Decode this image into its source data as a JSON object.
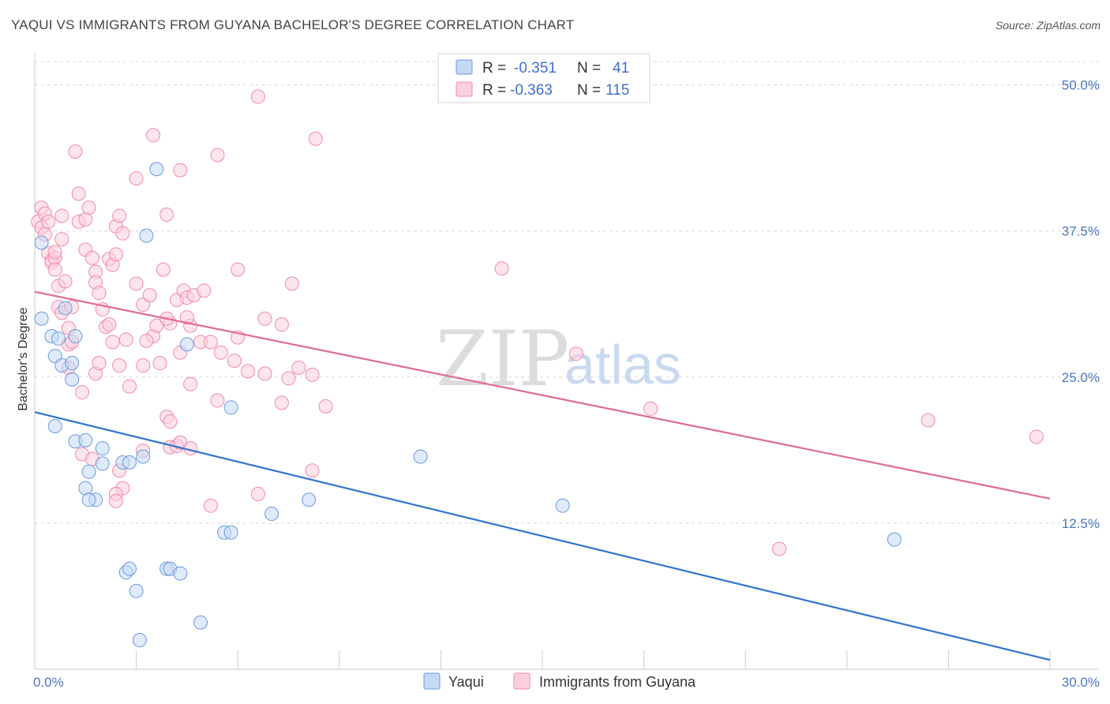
{
  "header": {
    "title": "YAQUI VS IMMIGRANTS FROM GUYANA BACHELOR'S DEGREE CORRELATION CHART",
    "source": "Source: ZipAtlas.com"
  },
  "watermark": {
    "zip": "ZIP",
    "atlas": "atlas"
  },
  "colors": {
    "yaqui": "#6a9be0",
    "yaqui_fill": "#c5d9f5",
    "yaqui_line": "#2f74d0",
    "guyana": "#f08aab",
    "guyana_fill": "#fbd0dd",
    "guyana_line": "#e06b95",
    "grid": "#d8d8d8",
    "tick_label": "#4a78c2"
  },
  "legend": {
    "rows": [
      {
        "r_label": "R =",
        "r_value": "-0.351",
        "n_label": "N =",
        "n_value": "41"
      },
      {
        "r_label": "R =",
        "r_value": "-0.363",
        "n_label": "N =",
        "n_value": "115"
      }
    ]
  },
  "bottom_legend": [
    "Yaqui",
    "Immigrants from Guyana"
  ],
  "chart_data": {
    "type": "scatter",
    "title": "YAQUI VS IMMIGRANTS FROM GUYANA BACHELOR'S DEGREE CORRELATION CHART",
    "xlabel": "",
    "ylabel": "Bachelor's Degree",
    "xlim": [
      0,
      30
    ],
    "ylim": [
      0,
      52
    ],
    "x_tick_labels": [
      "0.0%",
      "30.0%"
    ],
    "y_ticks": [
      12.5,
      25.0,
      37.5,
      50.0
    ],
    "y_tick_labels": [
      "12.5%",
      "25.0%",
      "37.5%",
      "50.0%"
    ],
    "grid": "horizontal dashed",
    "legend_position": "top-center",
    "series": [
      {
        "name": "Yaqui",
        "trend": {
          "x": [
            0,
            30
          ],
          "y": [
            22.0,
            0.8
          ]
        },
        "points": [
          [
            0.2,
            36.5
          ],
          [
            0.2,
            30.0
          ],
          [
            0.5,
            28.5
          ],
          [
            0.6,
            26.8
          ],
          [
            0.7,
            28.3
          ],
          [
            0.8,
            26.0
          ],
          [
            0.9,
            30.9
          ],
          [
            0.6,
            20.8
          ],
          [
            1.1,
            26.2
          ],
          [
            1.1,
            24.8
          ],
          [
            1.2,
            19.5
          ],
          [
            1.2,
            28.5
          ],
          [
            1.5,
            19.6
          ],
          [
            1.6,
            16.9
          ],
          [
            2.0,
            18.9
          ],
          [
            2.0,
            17.6
          ],
          [
            1.5,
            15.5
          ],
          [
            1.8,
            14.5
          ],
          [
            2.6,
            17.7
          ],
          [
            2.8,
            17.7
          ],
          [
            3.2,
            18.2
          ],
          [
            3.6,
            42.8
          ],
          [
            4.5,
            27.8
          ],
          [
            3.3,
            37.1
          ],
          [
            1.6,
            14.5
          ],
          [
            2.7,
            8.3
          ],
          [
            2.8,
            8.6
          ],
          [
            3.0,
            6.7
          ],
          [
            3.9,
            8.6
          ],
          [
            4.0,
            8.6
          ],
          [
            4.3,
            8.2
          ],
          [
            4.9,
            4.0
          ],
          [
            5.6,
            11.7
          ],
          [
            5.8,
            11.7
          ],
          [
            5.8,
            22.4
          ],
          [
            7.0,
            13.3
          ],
          [
            8.1,
            14.5
          ],
          [
            11.4,
            18.2
          ],
          [
            15.6,
            14.0
          ],
          [
            25.4,
            11.1
          ],
          [
            3.1,
            2.5
          ]
        ]
      },
      {
        "name": "Immigrants from Guyana",
        "trend": {
          "x": [
            0,
            30
          ],
          "y": [
            32.3,
            14.6
          ]
        },
        "points": [
          [
            0.1,
            38.3
          ],
          [
            0.2,
            39.5
          ],
          [
            0.2,
            37.8
          ],
          [
            0.3,
            39.0
          ],
          [
            0.3,
            37.2
          ],
          [
            0.4,
            35.6
          ],
          [
            0.5,
            35.0
          ],
          [
            0.5,
            34.8
          ],
          [
            0.6,
            35.2
          ],
          [
            0.6,
            34.2
          ],
          [
            0.7,
            32.8
          ],
          [
            0.8,
            38.8
          ],
          [
            0.8,
            36.8
          ],
          [
            0.7,
            31.0
          ],
          [
            0.8,
            30.5
          ],
          [
            1.0,
            29.2
          ],
          [
            1.0,
            27.8
          ],
          [
            1.1,
            31.0
          ],
          [
            1.2,
            44.3
          ],
          [
            1.3,
            40.7
          ],
          [
            1.3,
            38.3
          ],
          [
            1.5,
            38.5
          ],
          [
            1.6,
            39.5
          ],
          [
            1.5,
            35.9
          ],
          [
            1.7,
            35.2
          ],
          [
            1.8,
            34.0
          ],
          [
            1.8,
            33.1
          ],
          [
            1.9,
            32.2
          ],
          [
            2.0,
            30.8
          ],
          [
            2.1,
            29.3
          ],
          [
            2.2,
            35.1
          ],
          [
            2.3,
            34.6
          ],
          [
            2.4,
            35.5
          ],
          [
            2.4,
            37.9
          ],
          [
            2.5,
            38.8
          ],
          [
            2.6,
            37.3
          ],
          [
            2.2,
            29.5
          ],
          [
            2.3,
            28.0
          ],
          [
            2.5,
            26.0
          ],
          [
            1.8,
            25.3
          ],
          [
            1.4,
            23.7
          ],
          [
            1.0,
            25.8
          ],
          [
            3.0,
            33.0
          ],
          [
            3.2,
            31.2
          ],
          [
            3.4,
            32.0
          ],
          [
            3.5,
            28.5
          ],
          [
            3.6,
            29.4
          ],
          [
            3.2,
            26.0
          ],
          [
            3.7,
            26.2
          ],
          [
            2.8,
            24.2
          ],
          [
            3.8,
            34.2
          ],
          [
            3.5,
            45.7
          ],
          [
            3.0,
            42.0
          ],
          [
            3.9,
            38.9
          ],
          [
            4.3,
            42.7
          ],
          [
            4.0,
            29.6
          ],
          [
            4.2,
            31.6
          ],
          [
            4.4,
            32.4
          ],
          [
            4.5,
            31.8
          ],
          [
            4.7,
            32.0
          ],
          [
            4.6,
            29.4
          ],
          [
            4.3,
            27.1
          ],
          [
            4.6,
            24.4
          ],
          [
            4.9,
            28.0
          ],
          [
            5.2,
            28.0
          ],
          [
            5.4,
            23.0
          ],
          [
            5.4,
            44.0
          ],
          [
            6.0,
            34.2
          ],
          [
            6.0,
            28.4
          ],
          [
            5.9,
            26.4
          ],
          [
            6.3,
            25.5
          ],
          [
            6.8,
            25.3
          ],
          [
            6.8,
            30.0
          ],
          [
            7.3,
            29.5
          ],
          [
            7.6,
            33.0
          ],
          [
            7.5,
            24.9
          ],
          [
            7.8,
            25.8
          ],
          [
            8.2,
            25.2
          ],
          [
            7.3,
            22.8
          ],
          [
            8.6,
            22.5
          ],
          [
            8.3,
            45.4
          ],
          [
            6.6,
            49.0
          ],
          [
            3.9,
            21.6
          ],
          [
            4.0,
            21.2
          ],
          [
            4.0,
            19.0
          ],
          [
            4.2,
            19.1
          ],
          [
            4.3,
            19.4
          ],
          [
            4.6,
            18.9
          ],
          [
            3.2,
            18.7
          ],
          [
            1.4,
            18.4
          ],
          [
            1.7,
            18.0
          ],
          [
            2.5,
            17.0
          ],
          [
            2.6,
            15.5
          ],
          [
            2.4,
            15.0
          ],
          [
            2.4,
            14.4
          ],
          [
            5.2,
            14.0
          ],
          [
            6.6,
            15.0
          ],
          [
            8.2,
            17.0
          ],
          [
            13.8,
            34.3
          ],
          [
            16.0,
            27.0
          ],
          [
            18.2,
            22.3
          ],
          [
            22.0,
            10.3
          ],
          [
            26.4,
            21.3
          ],
          [
            29.6,
            19.9
          ],
          [
            0.4,
            38.3
          ],
          [
            0.6,
            35.7
          ],
          [
            0.9,
            33.2
          ],
          [
            1.1,
            28.0
          ],
          [
            1.9,
            26.2
          ],
          [
            2.7,
            28.2
          ],
          [
            3.3,
            28.1
          ],
          [
            3.9,
            30.0
          ],
          [
            4.5,
            30.1
          ],
          [
            5.0,
            32.4
          ],
          [
            5.5,
            27.1
          ]
        ]
      }
    ]
  }
}
